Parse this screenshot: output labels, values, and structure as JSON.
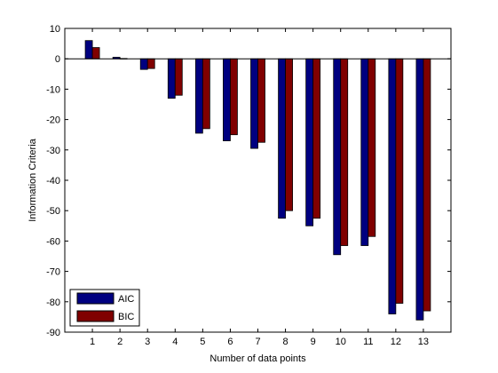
{
  "chart_data": {
    "type": "bar",
    "categories": [
      "1",
      "2",
      "3",
      "4",
      "5",
      "6",
      "7",
      "8",
      "9",
      "10",
      "11",
      "12",
      "13"
    ],
    "series": [
      {
        "name": "AIC",
        "color": "#000080",
        "values": [
          6,
          0.5,
          -3.5,
          -13,
          -24.5,
          -27,
          -29.5,
          -52.5,
          -55,
          -64.5,
          -61.5,
          -84,
          -86
        ]
      },
      {
        "name": "BIC",
        "color": "#800000",
        "values": [
          3.7,
          0.1,
          -3.2,
          -12,
          -23,
          -25,
          -27.5,
          -50,
          -52.5,
          -61.5,
          -58.5,
          -80.5,
          -83
        ]
      }
    ],
    "title": "",
    "xlabel": "Number of data points",
    "ylabel": "Information Criteria",
    "ylim": [
      -90,
      10
    ],
    "yticks": [
      10,
      0,
      -10,
      -20,
      -30,
      -40,
      -50,
      -60,
      -70,
      -80,
      -90
    ],
    "grid": false,
    "legend_position": "bottom-left",
    "zero_line": true
  }
}
